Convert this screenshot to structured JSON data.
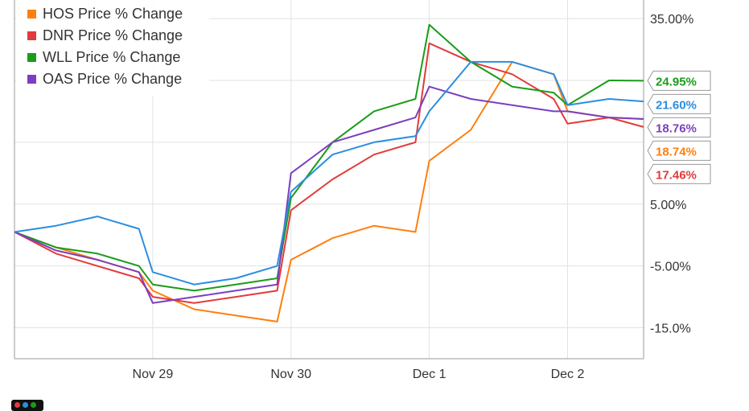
{
  "chart_data": {
    "type": "line",
    "title": "",
    "x_ticks": [
      "Nov 29",
      "Nov 30",
      "Dec 1",
      "Dec 2"
    ],
    "y_ticks": [
      "35.00%",
      "5.00%",
      "-5.00%",
      "-15.0%"
    ],
    "ylim": [
      -20,
      38
    ],
    "y_unit": "%",
    "grid": true,
    "legend_position": "top-left",
    "x": [
      0.0,
      0.3,
      0.6,
      0.9,
      1.0,
      1.3,
      1.6,
      1.9,
      2.0,
      2.3,
      2.6,
      2.9,
      3.0,
      3.3,
      3.6,
      3.9,
      4.0,
      4.3,
      4.55
    ],
    "series": [
      {
        "name": "HOS Price % Change",
        "color": "#ff7f0e",
        "end_label": "18.74%",
        "values": [
          0.5,
          -2.0,
          -4.0,
          -6.0,
          -9.0,
          -12.0,
          -13.0,
          -14.0,
          -4.0,
          -0.5,
          1.5,
          0.5,
          12.0,
          17.0,
          28.0,
          26.0,
          20.0,
          19.0,
          18.74
        ]
      },
      {
        "name": "DNR Price % Change",
        "color": "#e23b3b",
        "end_label": "17.46%",
        "values": [
          0.5,
          -3.0,
          -5.0,
          -7.0,
          -10.0,
          -11.0,
          -10.0,
          -9.0,
          4.0,
          9.0,
          13.0,
          15.0,
          31.0,
          28.0,
          26.0,
          22.0,
          18.0,
          19.0,
          17.46
        ]
      },
      {
        "name": "WLL Price % Change",
        "color": "#1a9c1a",
        "end_label": "24.95%",
        "values": [
          0.5,
          -2.0,
          -3.0,
          -5.0,
          -8.0,
          -9.0,
          -8.0,
          -7.0,
          6.0,
          15.0,
          20.0,
          22.0,
          34.0,
          28.0,
          24.0,
          23.0,
          21.0,
          25.0,
          24.95
        ]
      },
      {
        "name": "OAS Price % Change",
        "color": "#7b3fbf",
        "end_label": "18.76%",
        "values": [
          0.5,
          -2.5,
          -4.0,
          -6.0,
          -11.0,
          -10.0,
          -9.0,
          -8.0,
          10.0,
          15.0,
          17.0,
          19.0,
          24.0,
          22.0,
          21.0,
          20.0,
          20.0,
          19.0,
          18.76
        ]
      },
      {
        "name": "",
        "color": "#2b8ee0",
        "end_label": "21.60%",
        "values": [
          0.5,
          1.5,
          3.0,
          1.0,
          -6.0,
          -8.0,
          -7.0,
          -5.0,
          7.0,
          13.0,
          15.0,
          16.0,
          20.0,
          28.0,
          28.0,
          26.0,
          21.0,
          22.0,
          21.6
        ]
      }
    ]
  }
}
